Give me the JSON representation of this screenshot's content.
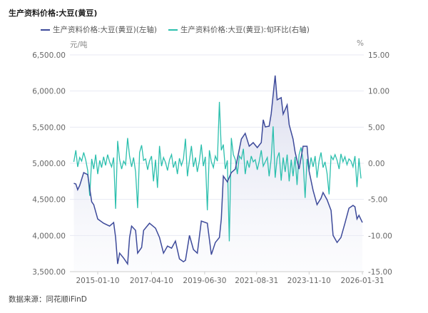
{
  "title": "生产资料价格:大豆(黄豆)",
  "source": "数据来源：同花顺iFinD",
  "chart_data": {
    "type": "line",
    "title": "生产资料价格:大豆(黄豆)",
    "left_unit": "元/吨",
    "right_unit": "%",
    "left_ylim": [
      3500,
      6500
    ],
    "left_ticks": [
      "6,500.00",
      "6,000.00",
      "5,500.00",
      "5,000.00",
      "4,500.00",
      "4,000.00",
      "3,500.00"
    ],
    "right_ylim": [
      -15,
      15
    ],
    "right_ticks": [
      "15.00",
      "10.00",
      "5.00",
      "0.00",
      "-5.00",
      "-10.00",
      "-15.00"
    ],
    "x_ticks": [
      "2015-01-10",
      "2017-04-10",
      "2019-06-30",
      "2021-08-31",
      "2023-11-10",
      "2026-01-31"
    ],
    "grid": true,
    "legend_position": "top",
    "series": [
      {
        "name": "生产资料价格:大豆(黄豆)(左轴)",
        "axis": "left",
        "color": "#3d4a9a",
        "area": true,
        "x": [
          "2014-01-10",
          "2014-02-10",
          "2014-03-10",
          "2014-04-10",
          "2014-06-10",
          "2014-08-10",
          "2014-10-10",
          "2014-11-10",
          "2015-01-10",
          "2015-04-10",
          "2015-07-10",
          "2015-09-10",
          "2015-10-10",
          "2015-11-10",
          "2015-12-10",
          "2016-02-10",
          "2016-04-10",
          "2016-05-10",
          "2016-06-10",
          "2016-08-10",
          "2016-09-10",
          "2016-11-10",
          "2016-12-10",
          "2017-03-10",
          "2017-06-10",
          "2017-08-10",
          "2017-10-10",
          "2017-12-10",
          "2018-02-10",
          "2018-04-10",
          "2018-06-10",
          "2018-08-10",
          "2018-09-10",
          "2018-11-10",
          "2019-01-10",
          "2019-03-10",
          "2019-05-10",
          "2019-08-10",
          "2019-10-10",
          "2019-12-10",
          "2020-02-10",
          "2020-03-10",
          "2020-04-10",
          "2020-06-10",
          "2020-08-10",
          "2020-10-10",
          "2021-01-10",
          "2021-03-10",
          "2021-05-10",
          "2021-07-10",
          "2021-09-10",
          "2021-11-10",
          "2021-12-10",
          "2022-01-10",
          "2022-03-10",
          "2022-04-10",
          "2022-06-10",
          "2022-07-10",
          "2022-09-10",
          "2022-10-10",
          "2022-12-10",
          "2023-01-10",
          "2023-03-10",
          "2023-04-10",
          "2023-06-10",
          "2023-08-10",
          "2023-10-10",
          "2023-11-10",
          "2024-01-10",
          "2024-03-10",
          "2024-05-10",
          "2024-06-10",
          "2024-08-10",
          "2024-10-10",
          "2024-11-10",
          "2025-01-10",
          "2025-03-10",
          "2025-05-10",
          "2025-07-10",
          "2025-09-10",
          "2025-10-10",
          "2025-11-10",
          "2025-12-10",
          "2026-01-31"
        ],
        "values": [
          4723,
          4713,
          4634,
          4693,
          4871,
          4842,
          4466,
          4427,
          4229,
          4170,
          4131,
          4180,
          3973,
          3607,
          3756,
          3687,
          3607,
          3973,
          4131,
          4071,
          3756,
          3835,
          4071,
          4170,
          4101,
          3973,
          3756,
          3854,
          3825,
          3923,
          3677,
          3637,
          3657,
          4002,
          3805,
          3756,
          4200,
          4170,
          3736,
          3904,
          3973,
          4229,
          4822,
          4743,
          4871,
          4920,
          5335,
          5414,
          5236,
          5286,
          5217,
          5286,
          5602,
          5503,
          5513,
          5681,
          6214,
          5878,
          5908,
          5681,
          5809,
          5533,
          5335,
          5157,
          4920,
          5236,
          5236,
          4891,
          4624,
          4427,
          4516,
          4595,
          4496,
          4348,
          4002,
          3904,
          3973,
          4170,
          4378,
          4417,
          4397,
          4229,
          4279,
          4180
        ]
      },
      {
        "name": "生产资料价格:大豆(黄豆):旬环比(右轴)",
        "axis": "right",
        "color": "#2bbfad",
        "x": [
          "2014-01",
          "2014-02",
          "2014-03",
          "2014-04",
          "2014-05",
          "2014-06",
          "2014-07",
          "2014-08",
          "2014-09",
          "2014-10",
          "2014-11",
          "2014-12",
          "2015-01",
          "2015-02",
          "2015-03",
          "2015-04",
          "2015-05",
          "2015-06",
          "2015-07",
          "2015-08",
          "2015-09",
          "2015-10",
          "2015-11",
          "2015-12",
          "2016-01",
          "2016-02",
          "2016-03",
          "2016-04",
          "2016-05",
          "2016-06",
          "2016-07",
          "2016-08",
          "2016-09",
          "2016-10",
          "2016-11",
          "2016-12",
          "2017-01",
          "2017-02",
          "2017-03",
          "2017-04",
          "2017-05",
          "2017-06",
          "2017-07",
          "2017-08",
          "2017-09",
          "2017-10",
          "2017-11",
          "2017-12",
          "2018-01",
          "2018-02",
          "2018-03",
          "2018-04",
          "2018-05",
          "2018-06",
          "2018-07",
          "2018-08",
          "2018-09",
          "2018-10",
          "2018-11",
          "2018-12",
          "2019-01",
          "2019-02",
          "2019-03",
          "2019-04",
          "2019-05",
          "2019-06",
          "2019-07",
          "2019-08",
          "2019-09",
          "2019-10",
          "2019-11",
          "2019-12",
          "2020-01",
          "2020-02",
          "2020-03",
          "2020-04",
          "2020-05",
          "2020-06",
          "2020-07",
          "2020-08",
          "2020-09",
          "2020-10",
          "2020-11",
          "2020-12",
          "2021-01",
          "2021-02",
          "2021-03",
          "2021-04",
          "2021-05",
          "2021-06",
          "2021-07",
          "2021-08",
          "2021-09",
          "2021-10",
          "2021-11",
          "2021-12",
          "2022-01",
          "2022-02",
          "2022-03",
          "2022-04",
          "2022-05",
          "2022-06",
          "2022-07",
          "2022-08",
          "2022-09",
          "2022-10",
          "2022-11",
          "2022-12",
          "2023-01",
          "2023-02",
          "2023-03",
          "2023-04",
          "2023-05",
          "2023-06",
          "2023-07",
          "2023-08",
          "2023-09",
          "2023-10",
          "2023-11",
          "2023-12",
          "2024-01",
          "2024-02",
          "2024-03",
          "2024-04",
          "2024-05",
          "2024-06",
          "2024-07",
          "2024-08",
          "2024-09",
          "2024-10",
          "2024-11",
          "2024-12",
          "2025-01",
          "2025-02",
          "2025-03",
          "2025-04",
          "2025-05",
          "2025-06",
          "2025-07",
          "2025-08",
          "2025-09",
          "2025-10",
          "2025-11",
          "2025-12",
          "2026-01"
        ],
        "values": [
          0.2,
          1.8,
          -0.5,
          0.8,
          0.3,
          1.5,
          0.5,
          -1.0,
          -4.5,
          0.6,
          -0.8,
          1.2,
          -1.5,
          0.4,
          -0.6,
          0.9,
          -0.3,
          1.2,
          0.2,
          -0.5,
          0.8,
          -6.3,
          3.1,
          0.5,
          -0.8,
          0.3,
          -0.2,
          3.5,
          1.0,
          -0.5,
          0.8,
          -1.2,
          -6.2,
          1.5,
          2.5,
          0.4,
          0.6,
          -0.9,
          0.3,
          1.0,
          -2.5,
          0.5,
          -3.4,
          2.4,
          -0.4,
          0.8,
          0.1,
          -1.0,
          0.5,
          1.2,
          -0.6,
          0.3,
          -1.5,
          0.7,
          -0.3,
          0.6,
          3.4,
          -1.8,
          0.4,
          2.4,
          -0.5,
          0.8,
          -1.2,
          0.3,
          2.6,
          -0.4,
          0.9,
          -6.5,
          1.8,
          0.2,
          -0.6,
          1.0,
          0.3,
          8.5,
          1.8,
          2.6,
          -0.8,
          0.4,
          -10.8,
          3.5,
          1.2,
          0.5,
          -1.5,
          1.0,
          0.6,
          2.0,
          -1.5,
          0.4,
          -0.6,
          1.0,
          0.2,
          0.5,
          -0.9,
          0.3,
          1.8,
          -0.4,
          0.2,
          0.8,
          -1.8,
          0.6,
          5.1,
          -2.0,
          0.7,
          1.5,
          -2.4,
          0.8,
          -1.2,
          1.2,
          -2.5,
          0.5,
          -1.8,
          0.9,
          -3.0,
          1.2,
          2.2,
          0.4,
          -4.8,
          0.6,
          -1.0,
          0.8,
          -0.5,
          1.0,
          -2.0,
          0.3,
          1.5,
          -0.6,
          0.2,
          -1.4,
          -4.3,
          1.0,
          0.5,
          1.2,
          0.4,
          -0.8,
          1.3,
          0.2,
          0.9,
          -0.2,
          0.6,
          0.3,
          -0.5,
          1.0,
          -3.3,
          0.7,
          -2.1
        ]
      }
    ]
  }
}
